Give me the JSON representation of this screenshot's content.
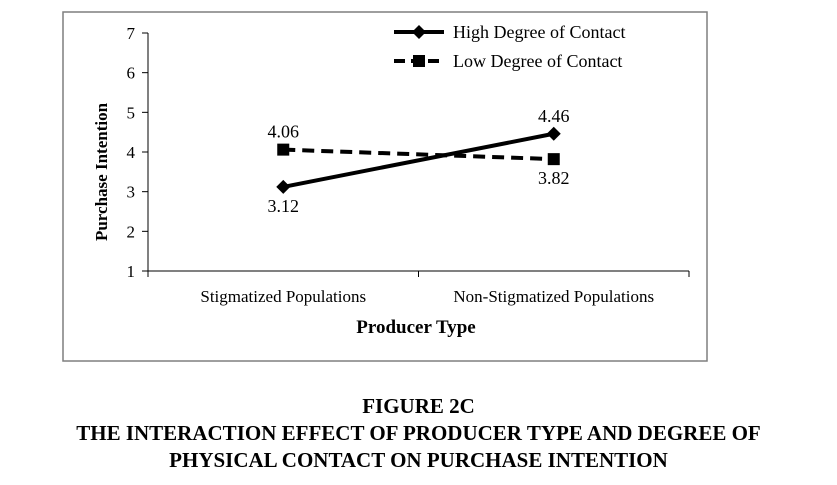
{
  "chart_data": {
    "type": "line",
    "title": "",
    "xlabel": "Producer Type",
    "ylabel": "Purchase Intention",
    "categories": [
      "Stigmatized Populations",
      "Non-Stigmatized Populations"
    ],
    "ylim": [
      1,
      7
    ],
    "yticks": [
      "1",
      "2",
      "3",
      "4",
      "5",
      "6",
      "7"
    ],
    "grid": false,
    "legend_position": "top-right",
    "series": [
      {
        "name": "High Degree of Contact",
        "values": [
          3.12,
          4.46
        ],
        "labels": [
          "3.12",
          "4.46"
        ],
        "line_style": "solid",
        "marker": "diamond",
        "color": "#000000"
      },
      {
        "name": "Low Degree of Contact",
        "values": [
          4.06,
          3.82
        ],
        "labels": [
          "4.06",
          "3.82"
        ],
        "line_style": "dashed",
        "marker": "square",
        "color": "#000000"
      }
    ]
  },
  "caption": {
    "figure_label": "FIGURE 2C",
    "line1": "THE INTERACTION EFFECT OF PRODUCER TYPE AND DEGREE OF",
    "line2": "PHYSICAL CONTACT ON PURCHASE INTENTION"
  }
}
